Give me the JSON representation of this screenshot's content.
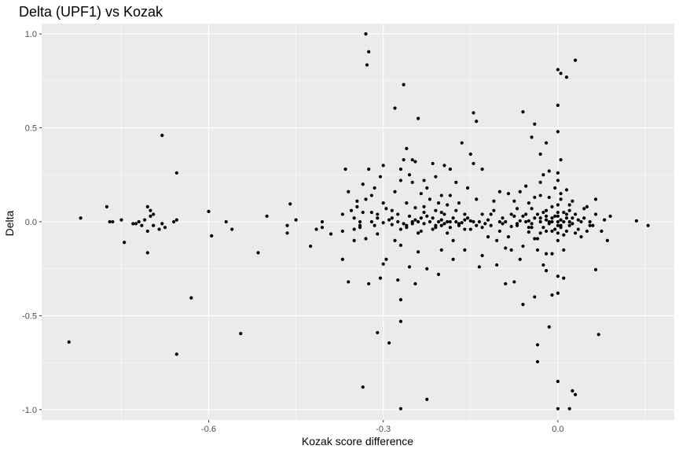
{
  "chart_data": {
    "type": "scatter",
    "title": "Delta (UPF1) vs Kozak",
    "xlabel": "Kozak score difference",
    "ylabel": "Delta",
    "xlim": [
      -0.887,
      0.2
    ],
    "ylim": [
      -1.055,
      1.055
    ],
    "x_ticks": [
      -0.6,
      -0.3,
      0.0
    ],
    "x_tick_labels": [
      "-0.6",
      "-0.3",
      "0.0"
    ],
    "y_ticks": [
      -1.0,
      -0.5,
      0.0,
      0.5,
      1.0
    ],
    "y_tick_labels": [
      "-1.0",
      "-0.5",
      "0.0",
      "0.5",
      "1.0"
    ],
    "grid": true,
    "colors": {
      "panel": "#ebebeb",
      "grid_major": "#ffffff",
      "point": "#000000"
    },
    "points": [
      [
        -0.84,
        -0.64
      ],
      [
        -0.82,
        0.02
      ],
      [
        -0.775,
        0.08
      ],
      [
        -0.77,
        0.0
      ],
      [
        -0.765,
        0.0
      ],
      [
        -0.75,
        0.01
      ],
      [
        -0.745,
        -0.11
      ],
      [
        -0.73,
        -0.01
      ],
      [
        -0.725,
        -0.01
      ],
      [
        -0.72,
        0.0
      ],
      [
        -0.715,
        -0.02
      ],
      [
        -0.71,
        0.01
      ],
      [
        -0.705,
        -0.05
      ],
      [
        -0.705,
        0.08
      ],
      [
        -0.7,
        0.06
      ],
      [
        -0.7,
        0.03
      ],
      [
        -0.705,
        -0.165
      ],
      [
        -0.695,
        -0.02
      ],
      [
        -0.695,
        0.04
      ],
      [
        -0.685,
        -0.04
      ],
      [
        -0.68,
        -0.01
      ],
      [
        -0.675,
        -0.03
      ],
      [
        -0.68,
        0.46
      ],
      [
        -0.66,
        0.0
      ],
      [
        -0.655,
        0.01
      ],
      [
        -0.655,
        0.26
      ],
      [
        -0.655,
        -0.705
      ],
      [
        -0.63,
        -0.405
      ],
      [
        -0.6,
        0.055
      ],
      [
        -0.595,
        -0.075
      ],
      [
        -0.57,
        0.0
      ],
      [
        -0.56,
        -0.04
      ],
      [
        -0.545,
        -0.595
      ],
      [
        -0.515,
        -0.165
      ],
      [
        -0.5,
        0.03
      ],
      [
        -0.465,
        -0.06
      ],
      [
        -0.465,
        -0.02
      ],
      [
        -0.46,
        0.095
      ],
      [
        -0.45,
        0.01
      ],
      [
        -0.425,
        -0.13
      ],
      [
        -0.415,
        -0.04
      ],
      [
        -0.405,
        -0.03
      ],
      [
        -0.405,
        0.0
      ],
      [
        -0.39,
        -0.065
      ],
      [
        -0.37,
        0.04
      ],
      [
        -0.37,
        -0.05
      ],
      [
        -0.365,
        0.28
      ],
      [
        -0.36,
        -0.32
      ],
      [
        -0.36,
        0.16
      ],
      [
        -0.355,
        0.06
      ],
      [
        -0.35,
        0.02
      ],
      [
        -0.35,
        -0.04
      ],
      [
        -0.345,
        0.11
      ],
      [
        -0.345,
        0.08
      ],
      [
        -0.34,
        0.0
      ],
      [
        -0.34,
        -0.02
      ],
      [
        -0.335,
        0.2
      ],
      [
        -0.335,
        0.05
      ],
      [
        -0.33,
        -0.09
      ],
      [
        -0.335,
        -0.88
      ],
      [
        -0.33,
        0.12
      ],
      [
        -0.33,
        1.0
      ],
      [
        -0.328,
        0.835
      ],
      [
        -0.325,
        0.905
      ],
      [
        -0.325,
        -0.33
      ],
      [
        -0.325,
        0.28
      ],
      [
        -0.32,
        0.0
      ],
      [
        -0.32,
        0.05
      ],
      [
        -0.315,
        -0.02
      ],
      [
        -0.315,
        0.18
      ],
      [
        -0.31,
        0.04
      ],
      [
        -0.31,
        -0.065
      ],
      [
        -0.305,
        0.24
      ],
      [
        -0.31,
        -0.59
      ],
      [
        -0.305,
        -0.3
      ],
      [
        -0.3,
        -0.005
      ],
      [
        -0.3,
        0.1
      ],
      [
        -0.3,
        -0.225
      ],
      [
        -0.295,
        -0.2
      ],
      [
        -0.29,
        0.01
      ],
      [
        -0.29,
        -0.645
      ],
      [
        -0.285,
        0.06
      ],
      [
        -0.285,
        -0.015
      ],
      [
        -0.28,
        0.605
      ],
      [
        -0.28,
        0.16
      ],
      [
        -0.28,
        -0.1
      ],
      [
        -0.275,
        0.0
      ],
      [
        -0.275,
        0.04
      ],
      [
        -0.27,
        -0.04
      ],
      [
        -0.27,
        0.28
      ],
      [
        -0.27,
        -0.125
      ],
      [
        -0.27,
        0.22
      ],
      [
        -0.27,
        -0.995
      ],
      [
        -0.27,
        -0.53
      ],
      [
        -0.27,
        -0.415
      ],
      [
        -0.265,
        0.73
      ],
      [
        -0.265,
        0.33
      ],
      [
        -0.265,
        -0.01
      ],
      [
        -0.26,
        0.39
      ],
      [
        -0.26,
        0.1
      ],
      [
        -0.26,
        -0.02
      ],
      [
        -0.255,
        0.03
      ],
      [
        -0.255,
        0.25
      ],
      [
        -0.255,
        -0.24
      ],
      [
        -0.25,
        0.33
      ],
      [
        -0.25,
        -0.01
      ],
      [
        -0.25,
        0.0
      ],
      [
        -0.245,
        -0.33
      ],
      [
        -0.245,
        0.075
      ],
      [
        -0.245,
        0.32
      ],
      [
        -0.24,
        0.55
      ],
      [
        -0.24,
        0.0
      ],
      [
        -0.24,
        -0.06
      ],
      [
        -0.235,
        0.02
      ],
      [
        -0.235,
        0.15
      ],
      [
        -0.235,
        -0.05
      ],
      [
        -0.23,
        0.22
      ],
      [
        -0.23,
        0.08
      ],
      [
        -0.23,
        -0.01
      ],
      [
        -0.225,
        0.03
      ],
      [
        -0.225,
        -0.25
      ],
      [
        -0.225,
        0.18
      ],
      [
        -0.225,
        -0.945
      ],
      [
        -0.22,
        0.0
      ],
      [
        -0.22,
        0.12
      ],
      [
        -0.215,
        0.02
      ],
      [
        -0.215,
        -0.04
      ],
      [
        -0.21,
        0.06
      ],
      [
        -0.21,
        -0.02
      ],
      [
        -0.21,
        0.24
      ],
      [
        -0.205,
        0.0
      ],
      [
        -0.205,
        0.1
      ],
      [
        -0.2,
        0.01
      ],
      [
        -0.2,
        -0.02
      ],
      [
        -0.2,
        -0.15
      ],
      [
        -0.195,
        0.3
      ],
      [
        -0.195,
        0.04
      ],
      [
        -0.195,
        -0.01
      ],
      [
        -0.19,
        0.0
      ],
      [
        -0.19,
        0.09
      ],
      [
        -0.19,
        -0.06
      ],
      [
        -0.185,
        0.14
      ],
      [
        -0.185,
        0.28
      ],
      [
        -0.185,
        -0.03
      ],
      [
        -0.18,
        0.02
      ],
      [
        -0.18,
        -0.2
      ],
      [
        -0.175,
        0.06
      ],
      [
        -0.175,
        0.0
      ],
      [
        -0.17,
        -0.02
      ],
      [
        -0.17,
        0.1
      ],
      [
        -0.165,
        0.42
      ],
      [
        -0.165,
        -0.005
      ],
      [
        -0.16,
        0.04
      ],
      [
        -0.16,
        -0.15
      ],
      [
        -0.155,
        0.18
      ],
      [
        -0.155,
        0.02
      ],
      [
        -0.15,
        -0.04
      ],
      [
        -0.15,
        0.36
      ],
      [
        -0.15,
        0.005
      ],
      [
        -0.145,
        0.31
      ],
      [
        -0.145,
        0.0
      ],
      [
        -0.145,
        0.58
      ],
      [
        -0.14,
        0.535
      ],
      [
        -0.14,
        -0.02
      ],
      [
        -0.14,
        0.12
      ],
      [
        -0.135,
        -0.24
      ],
      [
        -0.135,
        0.0
      ],
      [
        -0.13,
        0.28
      ],
      [
        -0.13,
        0.04
      ],
      [
        -0.13,
        -0.18
      ],
      [
        -0.125,
        -0.01
      ],
      [
        -0.12,
        0.01
      ],
      [
        -0.115,
        -0.02
      ],
      [
        -0.11,
        0.06
      ],
      [
        -0.105,
        -0.1
      ],
      [
        -0.1,
        0.0
      ],
      [
        -0.105,
        -0.23
      ],
      [
        -0.1,
        -0.05
      ],
      [
        -0.1,
        0.16
      ],
      [
        -0.095,
        0.02
      ],
      [
        -0.09,
        -0.33
      ],
      [
        -0.09,
        0.0
      ],
      [
        -0.085,
        0.15
      ],
      [
        -0.08,
        -0.15
      ],
      [
        -0.08,
        -0.025
      ],
      [
        -0.075,
        0.03
      ],
      [
        -0.075,
        -0.32
      ],
      [
        -0.07,
        0.07
      ],
      [
        -0.07,
        -0.02
      ],
      [
        -0.065,
        0.16
      ],
      [
        -0.065,
        0.005
      ],
      [
        -0.06,
        -0.13
      ],
      [
        -0.06,
        0.585
      ],
      [
        -0.06,
        -0.44
      ],
      [
        -0.055,
        0.0
      ],
      [
        -0.055,
        0.04
      ],
      [
        -0.05,
        -0.055
      ],
      [
        -0.05,
        0.1
      ],
      [
        -0.05,
        0.005
      ],
      [
        -0.045,
        0.45
      ],
      [
        -0.045,
        -0.01
      ],
      [
        -0.045,
        -0.03
      ],
      [
        -0.04,
        -0.09
      ],
      [
        -0.04,
        0.52
      ],
      [
        -0.04,
        0.02
      ],
      [
        -0.04,
        -0.4
      ],
      [
        -0.035,
        -0.655
      ],
      [
        -0.035,
        -0.745
      ],
      [
        -0.035,
        0.04
      ],
      [
        -0.035,
        -0.09
      ],
      [
        -0.03,
        0.21
      ],
      [
        -0.03,
        0.0
      ],
      [
        -0.03,
        -0.06
      ],
      [
        -0.03,
        0.14
      ],
      [
        -0.03,
        0.36
      ],
      [
        -0.025,
        -0.03
      ],
      [
        -0.025,
        0.05
      ],
      [
        -0.025,
        -0.23
      ],
      [
        -0.02,
        0.01
      ],
      [
        -0.02,
        -0.17
      ],
      [
        -0.02,
        0.03
      ],
      [
        -0.02,
        0.06
      ],
      [
        -0.02,
        -0.26
      ],
      [
        -0.015,
        0.0
      ],
      [
        -0.015,
        -0.01
      ],
      [
        -0.015,
        -0.56
      ],
      [
        -0.015,
        0.13
      ],
      [
        -0.01,
        -0.05
      ],
      [
        -0.01,
        0.08
      ],
      [
        -0.01,
        -0.39
      ],
      [
        -0.01,
        0.0
      ],
      [
        -0.005,
        0.03
      ],
      [
        -0.005,
        -0.04
      ],
      [
        -0.005,
        0.18
      ],
      [
        0.0,
        0.0
      ],
      [
        0.0,
        -0.02
      ],
      [
        0.0,
        0.05
      ],
      [
        0.0,
        -0.1
      ],
      [
        0.0,
        0.81
      ],
      [
        0.0,
        0.62
      ],
      [
        0.0,
        0.48
      ],
      [
        0.0,
        0.26
      ],
      [
        0.0,
        0.22
      ],
      [
        0.0,
        -0.29
      ],
      [
        0.0,
        -0.38
      ],
      [
        0.0,
        -0.85
      ],
      [
        0.0,
        -0.995
      ],
      [
        0.005,
        0.01
      ],
      [
        0.005,
        -0.03
      ],
      [
        0.005,
        0.12
      ],
      [
        0.005,
        0.33
      ],
      [
        0.005,
        0.79
      ],
      [
        0.01,
        -0.07
      ],
      [
        0.01,
        0.05
      ],
      [
        0.01,
        0.0
      ],
      [
        0.01,
        -0.15
      ],
      [
        0.015,
        0.02
      ],
      [
        0.015,
        -0.05
      ],
      [
        0.015,
        0.17
      ],
      [
        0.015,
        0.77
      ],
      [
        0.02,
        0.0
      ],
      [
        0.02,
        -0.02
      ],
      [
        0.02,
        0.06
      ],
      [
        0.02,
        -0.995
      ],
      [
        0.025,
        -0.9
      ],
      [
        0.025,
        0.11
      ],
      [
        0.025,
        -0.01
      ],
      [
        0.03,
        0.86
      ],
      [
        0.03,
        -0.92
      ],
      [
        0.03,
        0.04
      ],
      [
        0.035,
        -0.04
      ],
      [
        0.035,
        0.01
      ],
      [
        0.04,
        0.0
      ],
      [
        0.04,
        -0.08
      ],
      [
        0.045,
        0.02
      ],
      [
        0.05,
        -0.05
      ],
      [
        0.05,
        0.08
      ],
      [
        0.055,
        0.0
      ],
      [
        0.06,
        -0.02
      ],
      [
        0.065,
        0.12
      ],
      [
        0.065,
        0.04
      ],
      [
        0.065,
        -0.255
      ],
      [
        0.07,
        -0.6
      ],
      [
        0.075,
        -0.05
      ],
      [
        0.08,
        0.01
      ],
      [
        0.085,
        -0.1
      ],
      [
        0.09,
        0.03
      ],
      [
        0.135,
        0.005
      ],
      [
        0.155,
        -0.02
      ],
      [
        -0.37,
        -0.2
      ],
      [
        -0.35,
        -0.1
      ],
      [
        -0.32,
        0.14
      ],
      [
        -0.3,
        0.3
      ],
      [
        -0.275,
        -0.31
      ],
      [
        -0.25,
        0.21
      ],
      [
        -0.24,
        -0.16
      ],
      [
        -0.215,
        0.31
      ],
      [
        -0.205,
        -0.28
      ],
      [
        -0.2,
        0.14
      ],
      [
        -0.18,
        -0.1
      ],
      [
        -0.175,
        0.21
      ],
      [
        -0.16,
        -0.04
      ],
      [
        -0.12,
        -0.08
      ],
      [
        -0.11,
        0.11
      ],
      [
        -0.09,
        -0.14
      ],
      [
        -0.085,
        -0.08
      ],
      [
        -0.075,
        0.11
      ],
      [
        -0.065,
        -0.2
      ],
      [
        -0.055,
        0.19
      ],
      [
        -0.045,
        0.07
      ],
      [
        -0.04,
        0.13
      ],
      [
        -0.035,
        -0.15
      ],
      [
        -0.025,
        0.25
      ],
      [
        -0.02,
        0.42
      ],
      [
        -0.015,
        0.27
      ],
      [
        -0.01,
        -0.17
      ],
      [
        0.0,
        0.09
      ],
      [
        0.0,
        -0.06
      ],
      [
        0.005,
        0.15
      ],
      [
        0.01,
        -0.3
      ],
      [
        0.02,
        0.09
      ],
      [
        0.03,
        -0.06
      ],
      [
        0.045,
        0.07
      ],
      [
        0.055,
        -0.02
      ],
      [
        -0.34,
        -0.03
      ],
      [
        -0.31,
        0.02
      ],
      [
        -0.295,
        0.07
      ],
      [
        -0.285,
        0.02
      ],
      [
        -0.26,
        -0.03
      ],
      [
        -0.245,
        0.01
      ],
      [
        -0.23,
        0.05
      ],
      [
        -0.21,
        -0.03
      ],
      [
        -0.2,
        0.05
      ],
      [
        -0.185,
        0.0
      ],
      [
        -0.17,
        -0.01
      ],
      [
        -0.16,
        0.01
      ],
      [
        -0.13,
        -0.03
      ],
      [
        -0.115,
        0.04
      ],
      [
        -0.095,
        -0.01
      ],
      [
        -0.08,
        0.04
      ],
      [
        -0.07,
        -0.01
      ],
      [
        -0.06,
        0.03
      ],
      [
        -0.05,
        -0.03
      ],
      [
        -0.03,
        0.02
      ],
      [
        -0.02,
        -0.05
      ],
      [
        -0.01,
        0.02
      ],
      [
        0.0,
        0.03
      ],
      [
        0.005,
        -0.02
      ],
      [
        0.015,
        0.04
      ],
      [
        0.025,
        0.02
      ]
    ]
  }
}
